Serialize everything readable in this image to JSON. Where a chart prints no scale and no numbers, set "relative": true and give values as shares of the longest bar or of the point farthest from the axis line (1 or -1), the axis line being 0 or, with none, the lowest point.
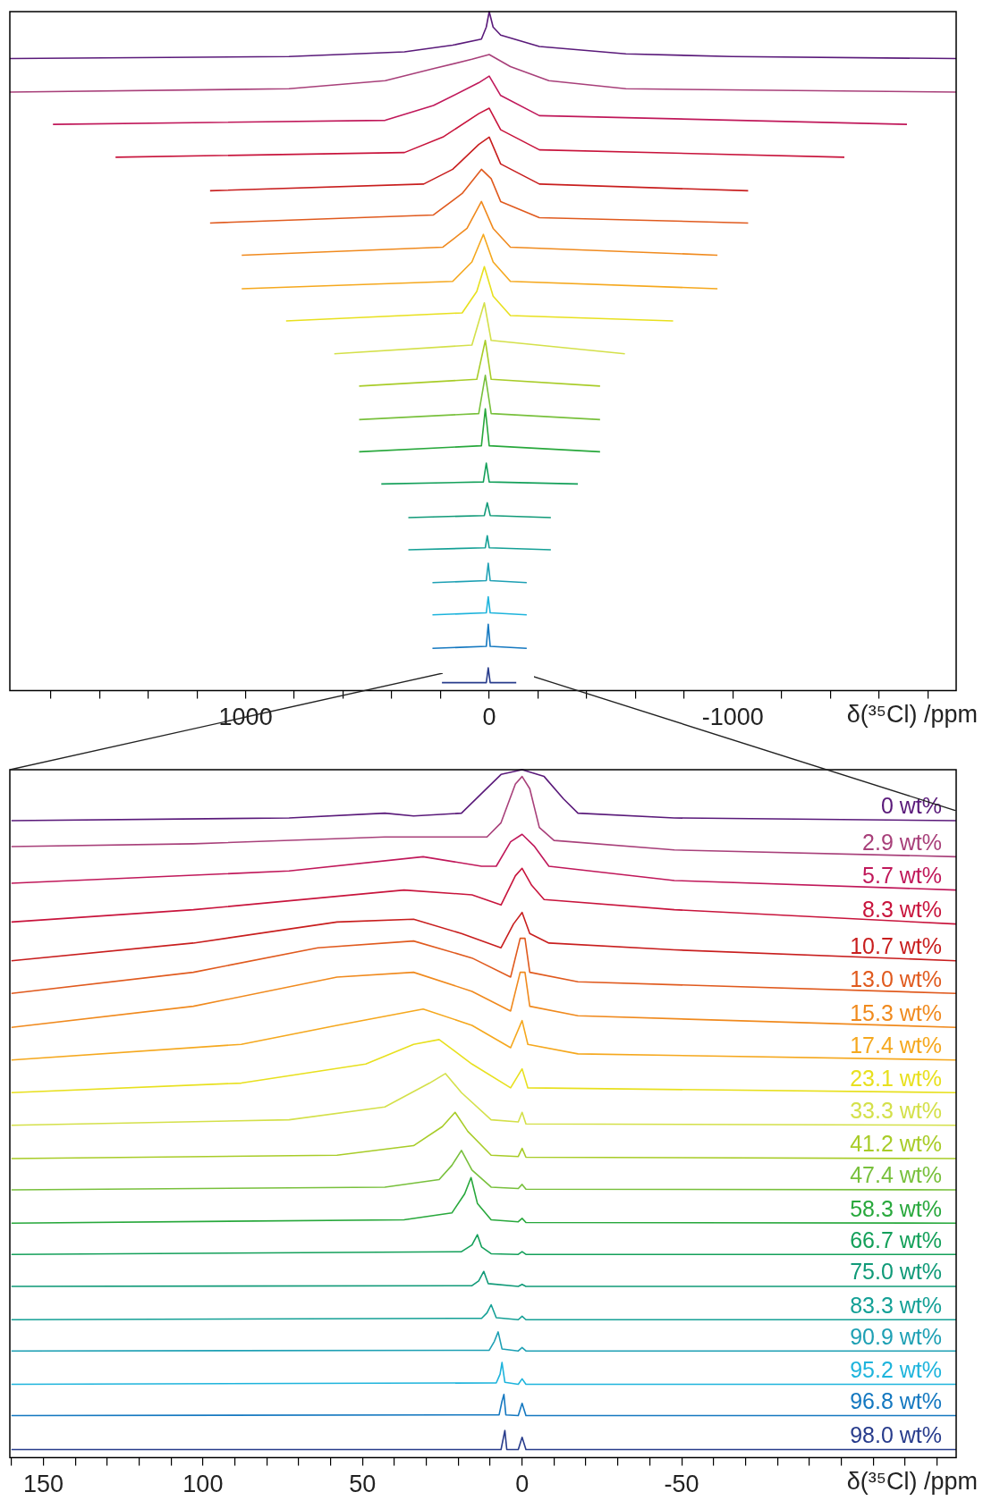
{
  "chart_data": [
    {
      "type": "line",
      "relative": true,
      "marker": "none",
      "xlabel": "δ(³⁵Cl) /ppm",
      "xlim": [
        1968,
        -1917
      ],
      "xticks": [
        {
          "value": 1800,
          "label": null
        },
        {
          "value": 1600,
          "label": null
        },
        {
          "value": 1400,
          "label": null
        },
        {
          "value": 1200,
          "label": null
        },
        1000,
        {
          "value": 800,
          "label": null
        },
        {
          "value": 600,
          "label": null
        },
        {
          "value": 400,
          "label": null
        },
        {
          "value": 200,
          "label": null
        },
        0,
        {
          "value": -200,
          "label": null
        },
        {
          "value": -400,
          "label": null
        },
        {
          "value": -600,
          "label": null
        },
        {
          "value": -800,
          "label": null
        },
        -1000,
        {
          "value": -1200,
          "label": null
        },
        {
          "value": -1400,
          "label": null
        },
        {
          "value": -1600,
          "label": null
        },
        {
          "value": -1800,
          "label": null
        }
      ],
      "series": [
        {
          "color": "#5a1a7a",
          "x": [
            1968,
            822,
            348,
            150,
            32,
            12,
            0,
            -16,
            -47,
            -206,
            -561,
            -996,
            -1917
          ],
          "values": [
            0.93,
            0.933,
            0.94,
            0.95,
            0.959,
            0.977,
            1.0,
            0.977,
            0.965,
            0.948,
            0.937,
            0.933,
            0.93
          ]
        },
        {
          "color": "#a8407a",
          "x": [
            1968,
            822,
            427,
            229,
            71,
            0,
            -87,
            -245,
            -561,
            -1917
          ],
          "values": [
            0.88,
            0.885,
            0.897,
            0.915,
            0.929,
            0.936,
            0.918,
            0.897,
            0.885,
            0.88
          ]
        },
        {
          "color": "#c0185a",
          "x": [
            1791,
            427,
            229,
            43,
            0,
            -47,
            -206,
            -1715
          ],
          "values": [
            0.832,
            0.838,
            0.86,
            0.894,
            0.904,
            0.875,
            0.845,
            0.832
          ]
        },
        {
          "color": "#c8143c",
          "x": [
            1534,
            348,
            190,
            43,
            0,
            -47,
            -206,
            -1458
          ],
          "values": [
            0.783,
            0.79,
            0.813,
            0.848,
            0.856,
            0.824,
            0.794,
            0.783
          ]
        },
        {
          "color": "#c81e1e",
          "x": [
            1146,
            269,
            150,
            43,
            0,
            -47,
            -206,
            -1063
          ],
          "values": [
            0.733,
            0.743,
            0.765,
            0.802,
            0.813,
            0.773,
            0.743,
            0.733
          ]
        },
        {
          "color": "#e05a1e",
          "x": [
            1146,
            229,
            111,
            32,
            -8,
            -47,
            -206,
            -1063
          ],
          "values": [
            0.685,
            0.697,
            0.729,
            0.765,
            0.751,
            0.717,
            0.693,
            0.685
          ]
        },
        {
          "color": "#f08a1e",
          "x": [
            1016,
            190,
            91,
            32,
            -16,
            -87,
            -937
          ],
          "values": [
            0.637,
            0.649,
            0.677,
            0.717,
            0.677,
            0.649,
            0.637
          ]
        },
        {
          "color": "#f5a81e",
          "x": [
            1016,
            150,
            71,
            24,
            -16,
            -87,
            -937
          ],
          "values": [
            0.587,
            0.598,
            0.627,
            0.668,
            0.627,
            0.598,
            0.587
          ]
        },
        {
          "color": "#e8e01e",
          "x": [
            834,
            111,
            51,
            20,
            -16,
            -87,
            -755
          ],
          "values": [
            0.539,
            0.551,
            0.583,
            0.62,
            0.576,
            0.547,
            0.539
          ]
        },
        {
          "color": "#d4e04a",
          "x": [
            636,
            71,
            20,
            -8,
            -557
          ],
          "values": [
            0.49,
            0.503,
            0.566,
            0.51,
            0.49
          ]
        },
        {
          "color": "#a8cc28",
          "x": [
            534,
            51,
            16,
            -8,
            -455
          ],
          "values": [
            0.442,
            0.452,
            0.51,
            0.452,
            0.442
          ]
        },
        {
          "color": "#78c03c",
          "x": [
            534,
            43,
            16,
            -8,
            -455
          ],
          "values": [
            0.392,
            0.401,
            0.458,
            0.401,
            0.392
          ]
        },
        {
          "color": "#28a83c",
          "x": [
            534,
            32,
            16,
            0,
            -455
          ],
          "values": [
            0.344,
            0.353,
            0.408,
            0.353,
            0.344
          ]
        },
        {
          "color": "#14a05a",
          "x": [
            443,
            24,
            12,
            0,
            -364
          ],
          "values": [
            0.296,
            0.299,
            0.327,
            0.299,
            0.296
          ]
        },
        {
          "color": "#109a78",
          "x": [
            332,
            20,
            8,
            -4,
            -253
          ],
          "values": [
            0.246,
            0.249,
            0.268,
            0.249,
            0.246
          ]
        },
        {
          "color": "#14a096",
          "x": [
            332,
            16,
            8,
            0,
            -253
          ],
          "values": [
            0.198,
            0.201,
            0.219,
            0.201,
            0.198
          ]
        },
        {
          "color": "#1ea0b4",
          "x": [
            233,
            12,
            4,
            -4,
            -154
          ],
          "values": [
            0.149,
            0.152,
            0.178,
            0.152,
            0.149
          ]
        },
        {
          "color": "#1eb4dc",
          "x": [
            233,
            12,
            4,
            -4,
            -154
          ],
          "values": [
            0.101,
            0.104,
            0.128,
            0.104,
            0.101
          ]
        },
        {
          "color": "#1478c0",
          "x": [
            233,
            12,
            4,
            -4,
            -154
          ],
          "values": [
            0.051,
            0.054,
            0.087,
            0.054,
            0.051
          ]
        },
        {
          "color": "#283c8c",
          "x": [
            194,
            12,
            4,
            -4,
            -111
          ],
          "values": [
            0,
            0,
            0.022,
            0,
            0
          ]
        }
      ]
    },
    {
      "type": "line",
      "relative": true,
      "marker": "none",
      "xlabel": "δ(³⁵Cl) /ppm",
      "xlim": [
        160.5,
        -136
      ],
      "xticks": [
        {
          "value": 160,
          "label": null
        },
        150,
        {
          "value": 140,
          "label": null
        },
        {
          "value": 130,
          "label": null
        },
        {
          "value": 120,
          "label": null
        },
        {
          "value": 110,
          "label": null
        },
        100,
        {
          "value": 90,
          "label": null
        },
        {
          "value": 80,
          "label": null
        },
        {
          "value": 70,
          "label": null
        },
        {
          "value": 60,
          "label": null
        },
        50,
        {
          "value": 40,
          "label": null
        },
        {
          "value": 30,
          "label": null
        },
        {
          "value": 20,
          "label": null
        },
        {
          "value": 10,
          "label": null
        },
        0,
        {
          "value": -10,
          "label": null
        },
        {
          "value": -20,
          "label": null
        },
        {
          "value": -30,
          "label": null
        },
        {
          "value": -40,
          "label": null
        },
        -50,
        {
          "value": -60,
          "label": null
        },
        {
          "value": -70,
          "label": null
        },
        {
          "value": -80,
          "label": null
        },
        {
          "value": -90,
          "label": null
        },
        {
          "value": -100,
          "label": null
        },
        {
          "value": -110,
          "label": null
        },
        {
          "value": -120,
          "label": null
        },
        {
          "value": -130,
          "label": null
        }
      ],
      "series": [
        {
          "name": "0 wt%",
          "color": "#5a1a7a",
          "x": [
            160,
            73,
            43,
            34,
            19,
            12.7,
            6.6,
            0,
            -6.9,
            -13,
            -17.5,
            -47.7,
            -136
          ],
          "values": [
            0.925,
            0.929,
            0.936,
            0.932,
            0.936,
            0.965,
            0.993,
            1.0,
            0.99,
            0.957,
            0.936,
            0.929,
            0.925
          ]
        },
        {
          "name": "2.9 wt%",
          "color": "#a8407a",
          "x": [
            160,
            103,
            43,
            19,
            11,
            6.6,
            2.1,
            0,
            -2.4,
            -5.4,
            -10,
            -47.7,
            -136
          ],
          "values": [
            0.887,
            0.891,
            0.901,
            0.901,
            0.901,
            0.922,
            0.979,
            0.99,
            0.972,
            0.915,
            0.896,
            0.882,
            0.872
          ]
        },
        {
          "name": "5.7 wt%",
          "color": "#c0185a",
          "x": [
            160,
            73,
            31,
            12.7,
            8.1,
            3.6,
            0,
            -3.9,
            -8.4,
            -47.7,
            -136
          ],
          "values": [
            0.833,
            0.851,
            0.872,
            0.858,
            0.858,
            0.894,
            0.905,
            0.887,
            0.858,
            0.837,
            0.823
          ]
        },
        {
          "name": "8.3 wt%",
          "color": "#c8143c",
          "x": [
            160,
            103,
            37,
            15.7,
            6.6,
            2.1,
            0,
            -3,
            -6.9,
            -47.7,
            -136
          ],
          "values": [
            0.776,
            0.794,
            0.823,
            0.816,
            0.801,
            0.844,
            0.855,
            0.83,
            0.809,
            0.794,
            0.773
          ]
        },
        {
          "name": "10.7 wt%",
          "color": "#c81e1e",
          "x": [
            160,
            103,
            58,
            34,
            19,
            6.6,
            2.7,
            0,
            -2.4,
            -8.4,
            -47.7,
            -136
          ],
          "values": [
            0.719,
            0.745,
            0.776,
            0.78,
            0.759,
            0.738,
            0.773,
            0.79,
            0.759,
            0.745,
            0.735,
            0.719
          ]
        },
        {
          "name": "13.0 wt%",
          "color": "#e05a1e",
          "x": [
            160,
            103,
            64,
            34,
            15.7,
            3.6,
            0.6,
            -0.9,
            -2.4,
            -17.5,
            -136
          ],
          "values": [
            0.671,
            0.702,
            0.738,
            0.748,
            0.723,
            0.695,
            0.752,
            0.752,
            0.702,
            0.688,
            0.671
          ]
        },
        {
          "name": "15.3 wt%",
          "color": "#f08a1e",
          "x": [
            160,
            103,
            58,
            34,
            15.7,
            3.6,
            0.6,
            -0.9,
            -2.4,
            -17.5,
            -136
          ],
          "values": [
            0.621,
            0.652,
            0.695,
            0.702,
            0.674,
            0.645,
            0.702,
            0.702,
            0.652,
            0.638,
            0.621
          ]
        },
        {
          "name": "17.4 wt%",
          "color": "#f5a81e",
          "x": [
            160,
            88,
            58,
            31,
            15.7,
            3.6,
            0,
            -1.8,
            -17.5,
            -136
          ],
          "values": [
            0.573,
            0.596,
            0.624,
            0.648,
            0.624,
            0.591,
            0.631,
            0.596,
            0.582,
            0.573
          ]
        },
        {
          "name": "23.1 wt%",
          "color": "#e8e01e",
          "x": [
            160,
            88,
            49,
            34,
            26,
            15.7,
            3.6,
            0,
            -1.8,
            -136
          ],
          "values": [
            0.525,
            0.539,
            0.567,
            0.596,
            0.603,
            0.567,
            0.532,
            0.56,
            0.532,
            0.525
          ]
        },
        {
          "name": "33.3 wt%",
          "color": "#d4e04a",
          "x": [
            160,
            73,
            43,
            29,
            24,
            19,
            9.7,
            1.2,
            0,
            -1.2,
            -136
          ],
          "values": [
            0.477,
            0.485,
            0.504,
            0.539,
            0.553,
            0.525,
            0.485,
            0.482,
            0.496,
            0.479,
            0.477
          ]
        },
        {
          "name": "41.2 wt%",
          "color": "#a8cc28",
          "x": [
            160,
            58,
            34,
            25,
            21,
            17,
            9.7,
            1.2,
            0,
            -1.2,
            -136
          ],
          "values": [
            0.428,
            0.433,
            0.447,
            0.475,
            0.496,
            0.468,
            0.433,
            0.431,
            0.443,
            0.43,
            0.428
          ]
        },
        {
          "name": "47.4 wt%",
          "color": "#78c03c",
          "x": [
            160,
            43,
            26,
            22,
            19,
            15.7,
            9.7,
            1.2,
            0,
            -1.2,
            -136
          ],
          "values": [
            0.382,
            0.386,
            0.397,
            0.418,
            0.44,
            0.411,
            0.386,
            0.384,
            0.39,
            0.383,
            0.382
          ]
        },
        {
          "name": "58.3 wt%",
          "color": "#28a83c",
          "x": [
            160,
            37,
            22,
            18,
            16,
            14,
            9.7,
            1.2,
            0,
            -1.2,
            -136
          ],
          "values": [
            0.333,
            0.338,
            0.348,
            0.376,
            0.4,
            0.362,
            0.338,
            0.335,
            0.34,
            0.334,
            0.333
          ]
        },
        {
          "name": "66.7 wt%",
          "color": "#14a05a",
          "x": [
            160,
            19,
            15.7,
            14,
            12.7,
            9.7,
            1.2,
            0,
            -1.2,
            -136
          ],
          "values": [
            0.287,
            0.291,
            0.301,
            0.316,
            0.298,
            0.288,
            0.287,
            0.291,
            0.287,
            0.287
          ]
        },
        {
          "name": "75.0 wt%",
          "color": "#109a78",
          "x": [
            160,
            15.7,
            13.6,
            12,
            10.6,
            1.2,
            0,
            -1.2,
            -136
          ],
          "values": [
            0.24,
            0.241,
            0.248,
            0.262,
            0.244,
            0.24,
            0.243,
            0.24,
            0.24
          ]
        },
        {
          "name": "83.3 wt%",
          "color": "#14a096",
          "x": [
            160,
            12.7,
            11,
            9.7,
            8.1,
            1.2,
            0,
            -1.2,
            -136
          ],
          "values": [
            0.191,
            0.193,
            0.201,
            0.213,
            0.194,
            0.191,
            0.196,
            0.191,
            0.191
          ]
        },
        {
          "name": "90.9 wt%",
          "color": "#1ea0b4",
          "x": [
            160,
            10.3,
            8.7,
            7.5,
            6.3,
            1.2,
            0,
            -1.2,
            -136
          ],
          "values": [
            0.145,
            0.146,
            0.159,
            0.173,
            0.148,
            0.145,
            0.15,
            0.145,
            0.145
          ]
        },
        {
          "name": "95.2 wt%",
          "color": "#1eb4dc",
          "x": [
            160,
            8.1,
            6.9,
            6.3,
            5.4,
            1.2,
            0,
            -1.2,
            -136
          ],
          "values": [
            0.096,
            0.098,
            0.111,
            0.128,
            0.099,
            0.096,
            0.104,
            0.096,
            0.096
          ]
        },
        {
          "name": "96.8 wt%",
          "color": "#1478c0",
          "x": [
            160,
            7.2,
            6.3,
            5.7,
            5.1,
            1.2,
            0,
            -1.2,
            -136
          ],
          "values": [
            0.05,
            0.051,
            0.071,
            0.081,
            0.051,
            0.05,
            0.068,
            0.05,
            0.05
          ]
        },
        {
          "name": "98.0 wt%",
          "color": "#283c8c",
          "x": [
            160,
            6.6,
            5.4,
            4.8,
            1.2,
            0,
            -1.2,
            -136
          ],
          "values": [
            0,
            0,
            0.028,
            0,
            0,
            0.018,
            0,
            0
          ]
        }
      ]
    }
  ]
}
